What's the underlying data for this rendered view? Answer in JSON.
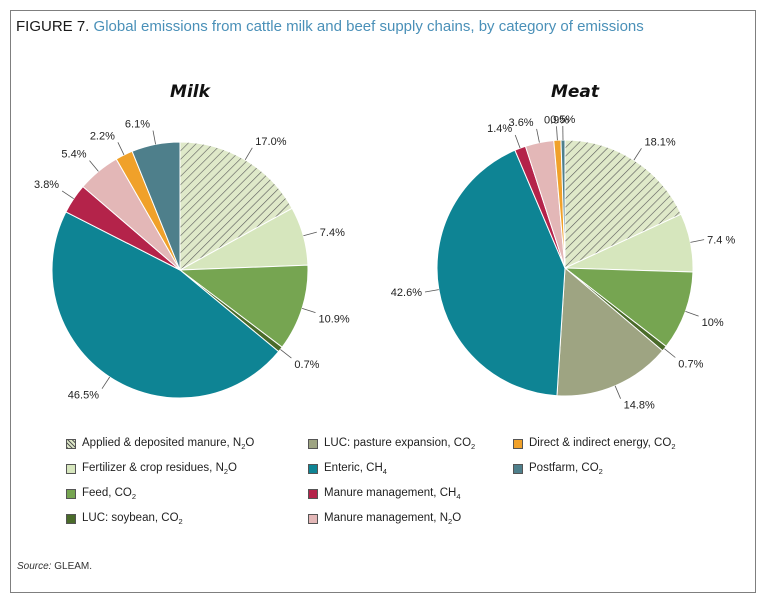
{
  "figure": {
    "label": "FIGURE 7.",
    "caption": "Global emissions from cattle milk and beef supply chains, by category of emissions",
    "source_label": "Source:",
    "source_text": "GLEAM."
  },
  "chart_data": [
    {
      "type": "pie",
      "title": "Milk",
      "start": "12 o'clock, clockwise",
      "slices": [
        {
          "key": "applied_manure",
          "value": 17.0,
          "label": "17.0%"
        },
        {
          "key": "fertilizer",
          "value": 7.4,
          "label": "7.4%"
        },
        {
          "key": "feed",
          "value": 10.9,
          "label": "10.9%"
        },
        {
          "key": "luc_soy",
          "value": 0.7,
          "label": "0.7%"
        },
        {
          "key": "luc_pasture",
          "value": 0.0,
          "label": ""
        },
        {
          "key": "enteric",
          "value": 46.5,
          "label": "46.5%"
        },
        {
          "key": "manure_ch4",
          "value": 3.8,
          "label": "3.8%"
        },
        {
          "key": "manure_n2o",
          "value": 5.4,
          "label": "5.4%"
        },
        {
          "key": "energy",
          "value": 2.2,
          "label": "2.2%"
        },
        {
          "key": "postfarm",
          "value": 6.1,
          "label": "6.1%"
        }
      ]
    },
    {
      "type": "pie",
      "title": "Meat",
      "start": "12 o'clock, clockwise",
      "slices": [
        {
          "key": "applied_manure",
          "value": 18.1,
          "label": "18.1%"
        },
        {
          "key": "fertilizer",
          "value": 7.4,
          "label": "7.4 %"
        },
        {
          "key": "feed",
          "value": 10.0,
          "label": "10%"
        },
        {
          "key": "luc_soy",
          "value": 0.7,
          "label": "0.7%"
        },
        {
          "key": "luc_pasture",
          "value": 14.8,
          "label": "14.8%"
        },
        {
          "key": "enteric",
          "value": 42.6,
          "label": "42.6%"
        },
        {
          "key": "manure_ch4",
          "value": 1.4,
          "label": "1.4%"
        },
        {
          "key": "manure_n2o",
          "value": 3.6,
          "label": "3.6%"
        },
        {
          "key": "energy",
          "value": 0.9,
          "label": "0.9%"
        },
        {
          "key": "postfarm",
          "value": 0.5,
          "label": "0.5%"
        }
      ]
    }
  ],
  "legend": [
    {
      "key": "applied_manure",
      "text": "Applied & deposited manure, N",
      "sub": "2",
      "after": "O",
      "color": "#d9e6c1",
      "hatched": true
    },
    {
      "key": "fertilizer",
      "text": "Fertilizer & crop residues, N",
      "sub": "2",
      "after": "O",
      "color": "#d6e6bd",
      "hatched": false
    },
    {
      "key": "feed",
      "text": "Feed, CO",
      "sub": "2",
      "after": "",
      "color": "#76a551",
      "hatched": false
    },
    {
      "key": "luc_soy",
      "text": "LUC: soybean, CO",
      "sub": "2",
      "after": "",
      "color": "#4a6b2a",
      "hatched": false
    },
    {
      "key": "luc_pasture",
      "text": "LUC: pasture expansion, CO",
      "sub": "2",
      "after": "",
      "color": "#9ea482",
      "hatched": false
    },
    {
      "key": "enteric",
      "text": "Enteric, CH",
      "sub": "4",
      "after": "",
      "color": "#0e8494",
      "hatched": false
    },
    {
      "key": "manure_ch4",
      "text": "Manure management, CH",
      "sub": "4",
      "after": "",
      "color": "#b4234a",
      "hatched": false
    },
    {
      "key": "manure_n2o",
      "text": "Manure management, N",
      "sub": "2",
      "after": "O",
      "color": "#e3b7b7",
      "hatched": false
    },
    {
      "key": "energy",
      "text": "Direct & indirect energy, CO",
      "sub": "2",
      "after": "",
      "color": "#f0a12a",
      "hatched": false
    },
    {
      "key": "postfarm",
      "text": "Postfarm, CO",
      "sub": "2",
      "after": "",
      "color": "#4e7f8b",
      "hatched": false
    }
  ]
}
